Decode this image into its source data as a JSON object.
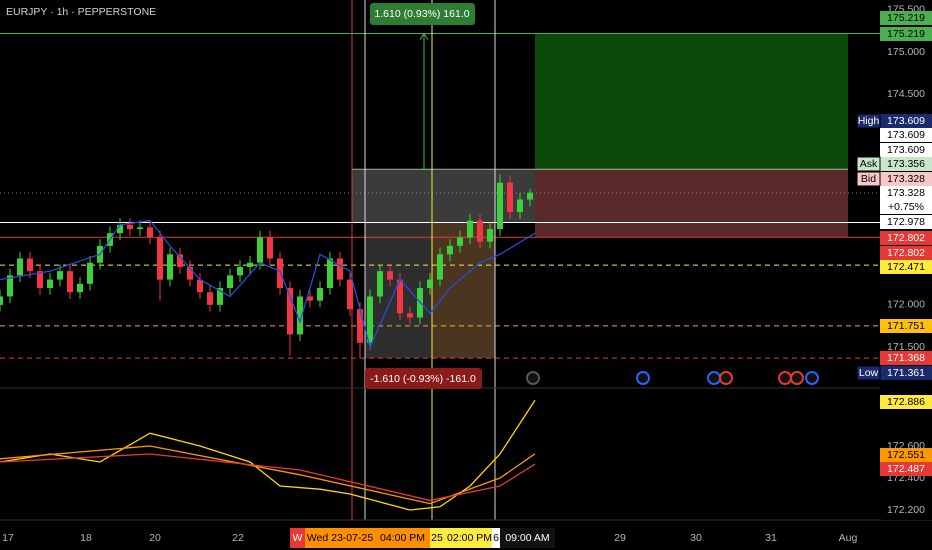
{
  "chart_data": [
    {
      "type": "candlestick",
      "title": "EURJPY · 1h · PEPPERSTONE",
      "up_color": "#3bd13b",
      "down_color": "#f23645",
      "x": [
        0,
        2,
        4,
        6,
        8,
        10,
        12,
        14,
        16,
        18,
        20,
        22,
        24,
        26,
        28,
        30,
        32,
        34,
        36,
        38,
        40,
        42,
        44,
        46,
        48,
        50,
        52,
        54,
        56,
        58,
        60,
        62,
        64,
        66,
        68,
        70,
        72,
        74,
        76,
        78,
        80,
        82,
        84,
        86,
        88,
        90,
        92,
        94,
        96,
        98,
        100,
        102,
        104,
        106
      ],
      "open": [
        172.0,
        172.1,
        172.35,
        172.55,
        172.4,
        172.2,
        172.3,
        172.4,
        172.15,
        172.25,
        172.5,
        172.7,
        172.85,
        172.95,
        172.9,
        172.92,
        172.8,
        172.3,
        172.6,
        172.45,
        172.3,
        172.15,
        172.0,
        172.2,
        172.35,
        172.45,
        172.5,
        172.8,
        172.55,
        172.2,
        171.65,
        172.1,
        172.05,
        172.2,
        172.55,
        172.3,
        171.95,
        171.55,
        172.1,
        172.4,
        172.3,
        171.9,
        171.85,
        172.2,
        172.3,
        172.6,
        172.7,
        172.8,
        173.0,
        172.75,
        172.9,
        173.45,
        173.1,
        173.25
      ],
      "high": [
        172.18,
        172.43,
        172.63,
        172.63,
        172.48,
        172.38,
        172.48,
        172.48,
        172.33,
        172.58,
        172.78,
        172.93,
        173.03,
        173.03,
        173.0,
        173.0,
        172.88,
        172.68,
        172.68,
        172.53,
        172.38,
        172.23,
        172.28,
        172.43,
        172.53,
        172.58,
        172.88,
        172.88,
        172.63,
        172.28,
        172.18,
        172.18,
        172.28,
        172.63,
        172.63,
        172.38,
        172.03,
        172.18,
        172.48,
        172.48,
        172.38,
        171.98,
        172.28,
        172.38,
        172.68,
        172.78,
        172.88,
        173.08,
        173.08,
        172.98,
        173.55,
        173.53,
        173.33,
        173.38
      ],
      "low": [
        171.92,
        172.02,
        172.27,
        172.32,
        172.12,
        172.12,
        172.22,
        172.07,
        172.07,
        172.17,
        172.42,
        172.62,
        172.77,
        172.82,
        172.82,
        172.72,
        172.05,
        172.22,
        172.37,
        172.22,
        172.07,
        171.92,
        171.92,
        172.12,
        172.27,
        172.37,
        172.42,
        172.47,
        172.12,
        171.4,
        171.57,
        171.97,
        171.97,
        172.12,
        172.22,
        171.87,
        171.37,
        171.47,
        172.02,
        172.22,
        171.82,
        171.77,
        171.77,
        172.12,
        172.22,
        172.52,
        172.62,
        172.72,
        172.67,
        172.67,
        172.82,
        173.02,
        173.02,
        173.17
      ],
      "close": [
        172.1,
        172.35,
        172.55,
        172.4,
        172.2,
        172.3,
        172.4,
        172.15,
        172.25,
        172.5,
        172.7,
        172.85,
        172.95,
        172.9,
        172.92,
        172.8,
        172.3,
        172.6,
        172.45,
        172.3,
        172.15,
        172.0,
        172.2,
        172.35,
        172.45,
        172.5,
        172.8,
        172.55,
        172.2,
        171.65,
        172.1,
        172.05,
        172.2,
        172.55,
        172.3,
        171.95,
        171.55,
        172.1,
        172.4,
        172.3,
        171.9,
        171.85,
        172.2,
        172.3,
        172.6,
        172.7,
        172.8,
        173.0,
        172.75,
        172.9,
        173.45,
        173.1,
        173.25,
        173.33
      ],
      "series": [
        {
          "color": "#2a4bd7",
          "x": [
            0,
            10,
            20,
            24,
            30,
            34,
            40,
            46,
            52,
            56,
            60,
            64,
            70,
            74,
            80,
            86,
            90,
            96,
            100,
            107
          ],
          "values": [
            172.3,
            172.4,
            172.6,
            172.95,
            173.0,
            172.7,
            172.3,
            172.1,
            172.5,
            172.4,
            171.8,
            172.6,
            172.4,
            171.5,
            172.3,
            171.9,
            172.2,
            172.5,
            172.6,
            172.85
          ]
        }
      ],
      "xlim": [
        0,
        176
      ],
      "xticks": [
        {
          "value": 1.6,
          "label": "17"
        },
        {
          "value": 17.2,
          "label": "18"
        },
        {
          "value": 31,
          "label": "20"
        },
        {
          "value": 47.6,
          "label": "22"
        },
        {
          "value": 124,
          "label": "29"
        },
        {
          "value": 139.2,
          "label": "30"
        },
        {
          "value": 154.2,
          "label": "31"
        },
        {
          "value": 169.6,
          "label": "Aug"
        }
      ],
      "ylim": [
        171.014,
        175.617
      ],
      "yticks": [
        {
          "value": 175.5,
          "label": "175.500"
        },
        {
          "value": 175,
          "label": "175.000"
        },
        {
          "value": 174.5,
          "label": "174.500"
        },
        {
          "value": 172,
          "label": "172.000"
        },
        {
          "value": 171.5,
          "label": "171.500"
        }
      ],
      "zones": [
        {
          "x": [
            107,
            169.6
          ],
          "y": [
            175.219,
            173.609
          ],
          "color": "#0b4a0b"
        },
        {
          "x": [
            107,
            169.6
          ],
          "y": [
            173.609,
            172.802
          ],
          "color": "#5a2a2a"
        },
        {
          "x": [
            70.4,
            107
          ],
          "y": [
            173.609,
            172.978
          ],
          "color": "#3b3b3b"
        },
        {
          "x": [
            73,
            86.4
          ],
          "y": [
            172.978,
            171.368
          ],
          "color": "#2e2e2e"
        },
        {
          "x": [
            86.4,
            99
          ],
          "y": [
            172.978,
            171.368
          ],
          "color": "#4a3520"
        }
      ],
      "levels": [
        {
          "value": 175.219,
          "color": "#4caf50",
          "style": "solid"
        },
        {
          "value": 173.609,
          "color": "#8fbf8f",
          "style": "solid",
          "x": [
            70.4,
            169.6
          ]
        },
        {
          "value": 173.328,
          "color": "#888888",
          "style": "dotted"
        },
        {
          "value": 172.978,
          "color": "#ffffff",
          "style": "solid"
        },
        {
          "value": 172.802,
          "color": "#e53935",
          "style": "solid"
        },
        {
          "value": 172.471,
          "color": "#ffeb3b",
          "style": "dashed"
        },
        {
          "value": 171.751,
          "color": "#ffa726",
          "style": "dashed"
        },
        {
          "value": 171.368,
          "color": "#e53935",
          "style": "dashed"
        }
      ],
      "vlines": [
        {
          "value": 70.4,
          "color": "#e53935"
        },
        {
          "value": 73,
          "color": "#dddddd"
        },
        {
          "value": 86.4,
          "color": "#ffeb3b"
        },
        {
          "value": 99,
          "color": "#dddddd"
        }
      ],
      "arrow": {
        "x": 84.8,
        "from": 173.609,
        "to": 175.219,
        "color": "#4caf50"
      },
      "measure_up": "1.610 (0.93%) 161.0",
      "measure_down": "-1.610 (-0.93%) -161.0",
      "price_labels": [
        {
          "value": 175.219,
          "bg": "#4caf50",
          "fg": "#000000"
        },
        {
          "value": 175.219,
          "bg": "#4caf50",
          "fg": "#000000"
        },
        {
          "value": 173.609,
          "bg": "#1a2a6c",
          "fg": "#ffffff",
          "tag": "High"
        },
        {
          "value": 173.609,
          "bg": "#ffffff",
          "fg": "#000000"
        },
        {
          "value": 173.609,
          "bg": "#ffffff",
          "fg": "#000000"
        },
        {
          "value": 173.356,
          "bg": "#c8e6c9",
          "fg": "#000000",
          "tag": "Ask"
        },
        {
          "value": 173.328,
          "bg": "#f8c8c8",
          "fg": "#000000",
          "tag": "Bid"
        },
        {
          "value": 173.328,
          "bg": "#ffffff",
          "fg": "#000000",
          "note": "+0.75%"
        },
        {
          "value": 172.978,
          "bg": "#ffffff",
          "fg": "#000000"
        },
        {
          "value": 172.802,
          "bg": "#e53935",
          "fg": "#ffffff"
        },
        {
          "value": 172.802,
          "bg": "#e53935",
          "fg": "#ffffff"
        },
        {
          "value": 172.471,
          "bg": "#ffeb3b",
          "fg": "#000000"
        },
        {
          "value": 171.751,
          "bg": "#ffc107",
          "fg": "#000000"
        },
        {
          "value": 171.368,
          "bg": "#e53935",
          "fg": "#ffffff"
        },
        {
          "value": 171.361,
          "bg": "#1a2a6c",
          "fg": "#ffffff",
          "tag": "Low"
        }
      ],
      "time_labels": [
        "W",
        "Wed 23-07-25",
        "04:00 PM",
        "25",
        "02:00 PM",
        "6",
        "09:00 AM"
      ]
    },
    {
      "type": "line",
      "series": [
        {
          "color": "#ffd600",
          "x": [
            0,
            10,
            20,
            30,
            40,
            50,
            56,
            64,
            70,
            76,
            82,
            88,
            94,
            100,
            107
          ],
          "values": [
            172.5,
            172.55,
            172.5,
            172.68,
            172.6,
            172.5,
            172.35,
            172.33,
            172.3,
            172.25,
            172.2,
            172.22,
            172.35,
            172.55,
            172.886
          ]
        },
        {
          "color": "#ff9800",
          "x": [
            0,
            30,
            60,
            86,
            100,
            107
          ],
          "values": [
            172.52,
            172.6,
            172.42,
            172.24,
            172.4,
            172.551
          ]
        },
        {
          "color": "#e53935",
          "x": [
            0,
            30,
            60,
            86,
            100,
            107
          ],
          "values": [
            172.5,
            172.55,
            172.45,
            172.26,
            172.35,
            172.487
          ]
        }
      ],
      "ylim": [
        172.1375,
        172.9625
      ],
      "yticks": [
        {
          "value": 172.6,
          "label": "172.600"
        },
        {
          "value": 172.4,
          "label": "172.400"
        },
        {
          "value": 172.2,
          "label": "172.200"
        }
      ],
      "price_labels": [
        {
          "value": 172.886,
          "bg": "#ffeb3b",
          "fg": "#000000"
        },
        {
          "value": 172.551,
          "bg": "#ff9800",
          "fg": "#000000"
        },
        {
          "value": 172.487,
          "bg": "#e53935",
          "fg": "#ffffff"
        }
      ]
    }
  ]
}
